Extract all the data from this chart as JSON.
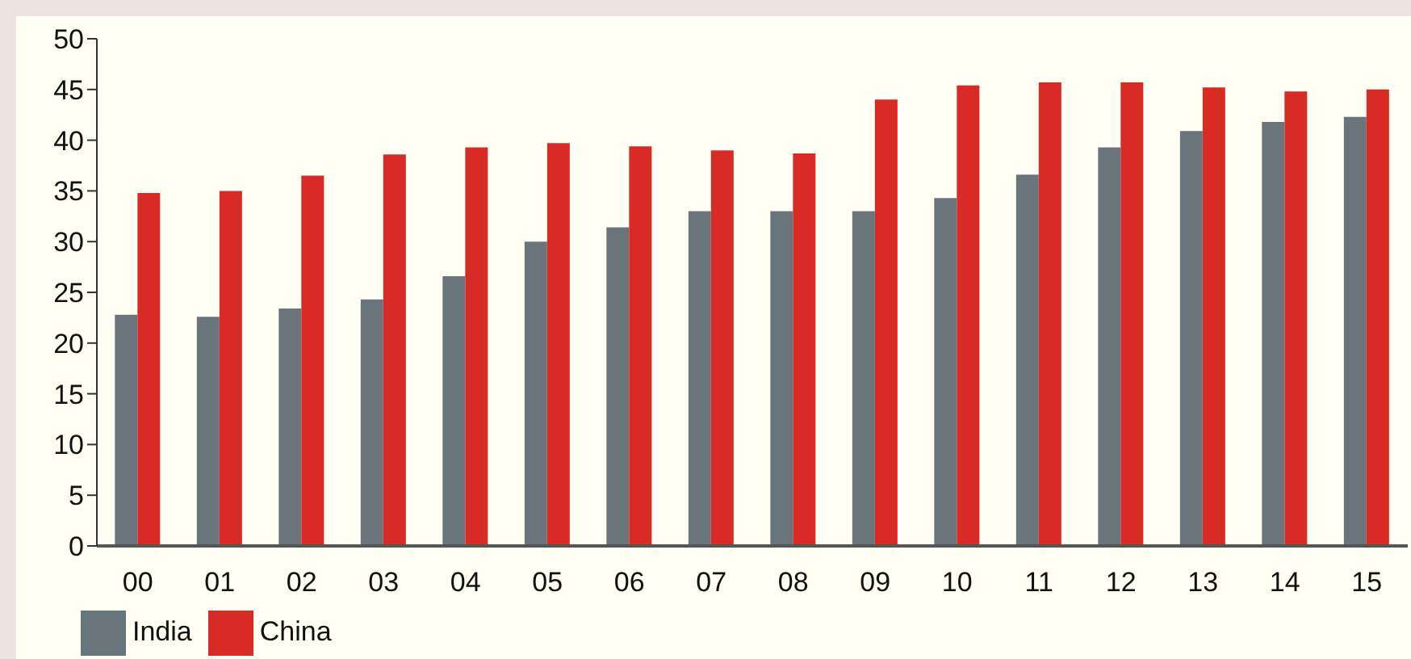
{
  "chart_data": {
    "type": "bar",
    "categories": [
      "00",
      "01",
      "02",
      "03",
      "04",
      "05",
      "06",
      "07",
      "08",
      "09",
      "10",
      "11",
      "12",
      "13",
      "14",
      "15"
    ],
    "series": [
      {
        "name": "India",
        "color": "#6a747b",
        "values": [
          22.8,
          22.6,
          23.4,
          24.3,
          26.6,
          30.0,
          31.4,
          33.0,
          33.0,
          33.0,
          34.3,
          36.6,
          39.3,
          40.9,
          41.8,
          42.3
        ]
      },
      {
        "name": "China",
        "color": "#d92b26",
        "values": [
          34.8,
          35.0,
          36.5,
          38.6,
          39.3,
          39.7,
          39.4,
          39.0,
          38.7,
          44.0,
          45.4,
          45.7,
          45.7,
          45.2,
          44.8,
          45.0
        ]
      }
    ],
    "ylim": [
      0,
      50
    ],
    "yticks": [
      0,
      5,
      10,
      15,
      20,
      25,
      30,
      35,
      40,
      45,
      50
    ],
    "grid": false,
    "legend": "bottom left"
  }
}
